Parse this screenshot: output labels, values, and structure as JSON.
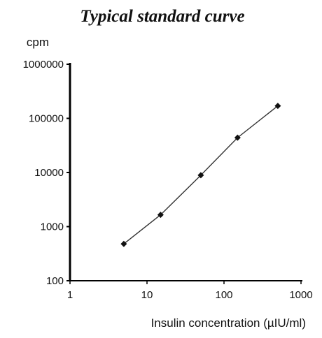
{
  "chart_data": {
    "type": "line",
    "title": "Typical standard curve",
    "ylabel": "cpm",
    "xlabel": "Insulin concentration (µIU/ml)",
    "x_scale": "log",
    "y_scale": "log",
    "xlim": [
      1,
      1000
    ],
    "ylim": [
      100,
      1000000
    ],
    "x_tick_labels": [
      "1",
      "10",
      "100",
      "1000"
    ],
    "y_tick_labels": [
      "100",
      "1000",
      "10000",
      "100000",
      "1000000"
    ],
    "grid": false,
    "marker": "diamond",
    "series": [
      {
        "x": [
          5,
          15,
          50,
          150,
          500
        ],
        "y": [
          480,
          1650,
          8900,
          44000,
          170000
        ]
      }
    ],
    "colors": {
      "line": "#333333",
      "marker": "#111111",
      "axis": "#000000"
    }
  }
}
